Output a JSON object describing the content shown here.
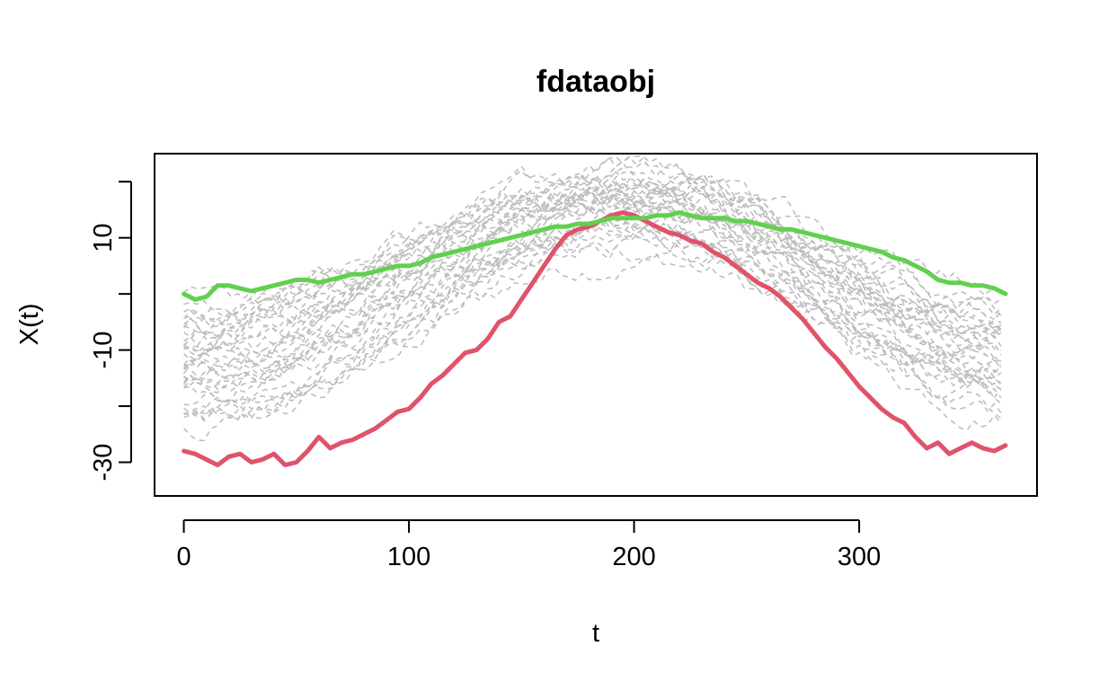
{
  "chart_data": {
    "type": "line",
    "title": "fdataobj",
    "xlabel": "t",
    "ylabel": "X(t)",
    "xlim": [
      -13,
      379
    ],
    "ylim": [
      -36,
      25
    ],
    "x_ticks": [
      0,
      100,
      200,
      300
    ],
    "y_ticks": [
      -30,
      -20,
      -10,
      0,
      10,
      20
    ],
    "y_tick_labels": [
      "-30",
      "",
      "-10",
      "",
      "10",
      ""
    ],
    "grid": false,
    "legend": "none",
    "background_style": {
      "color": "#bebebe",
      "dash": "dashed",
      "count": 35
    },
    "series": [
      {
        "color": "#DF536B",
        "values_x": [
          0,
          5,
          10,
          15,
          20,
          25,
          30,
          35,
          40,
          45,
          50,
          55,
          60,
          65,
          70,
          75,
          80,
          85,
          90,
          95,
          100,
          105,
          110,
          115,
          120,
          125,
          130,
          135,
          140,
          145,
          150,
          155,
          160,
          165,
          170,
          175,
          180,
          185,
          190,
          195,
          200,
          205,
          210,
          215,
          220,
          225,
          230,
          235,
          240,
          245,
          250,
          255,
          260,
          265,
          270,
          275,
          280,
          285,
          290,
          295,
          300,
          305,
          310,
          315,
          320,
          325,
          330,
          335,
          340,
          345,
          350,
          355,
          360,
          365
        ],
        "values_y": [
          -28,
          -28.5,
          -29.5,
          -30.5,
          -29,
          -28.5,
          -30,
          -29.5,
          -28.5,
          -30.5,
          -30,
          -28,
          -25.5,
          -27.5,
          -26.5,
          -26,
          -25,
          -24,
          -22.5,
          -21,
          -20.5,
          -18.5,
          -16,
          -14.5,
          -12.5,
          -10.5,
          -10,
          -8,
          -5,
          -4,
          -1,
          2,
          5,
          8,
          10.5,
          11.5,
          12,
          13,
          14,
          14.5,
          14,
          13,
          12,
          11,
          10.5,
          9.5,
          9,
          7.5,
          6.5,
          5,
          3.5,
          2,
          1,
          -0.5,
          -2.5,
          -4.5,
          -7,
          -9.5,
          -11.5,
          -14,
          -16.5,
          -18.5,
          -20.5,
          -22,
          -23,
          -25.5,
          -27.5,
          -26.5,
          -28.5,
          -27.5,
          -26.5,
          -27.5,
          -28,
          -27
        ]
      },
      {
        "color": "#61D04F",
        "values_x": [
          0,
          5,
          10,
          15,
          20,
          25,
          30,
          35,
          40,
          45,
          50,
          55,
          60,
          65,
          70,
          75,
          80,
          85,
          90,
          95,
          100,
          105,
          110,
          115,
          120,
          125,
          130,
          135,
          140,
          145,
          150,
          155,
          160,
          165,
          170,
          175,
          180,
          185,
          190,
          195,
          200,
          205,
          210,
          215,
          220,
          225,
          230,
          235,
          240,
          245,
          250,
          255,
          260,
          265,
          270,
          275,
          280,
          285,
          290,
          295,
          300,
          305,
          310,
          315,
          320,
          325,
          330,
          335,
          340,
          345,
          350,
          355,
          360,
          365
        ],
        "values_y": [
          0,
          -1,
          -0.5,
          1.5,
          1.5,
          1,
          0.5,
          1,
          1.5,
          2,
          2.5,
          2.5,
          2,
          2.5,
          3,
          3.5,
          3.5,
          4,
          4.5,
          5,
          5,
          5.5,
          6.5,
          7,
          7.5,
          8,
          8.5,
          9,
          9.5,
          10,
          10.5,
          11,
          11.5,
          12,
          12,
          12.5,
          12.5,
          13,
          13.5,
          13.5,
          13.5,
          13.5,
          14,
          14,
          14.5,
          14,
          13.5,
          13.5,
          13.5,
          13,
          13,
          12.5,
          12,
          11.5,
          11.5,
          11,
          10.5,
          10,
          9.5,
          9,
          8.5,
          8,
          7.5,
          6.5,
          6,
          5,
          4,
          2.5,
          2,
          2,
          1.5,
          1.5,
          1,
          0
        ]
      }
    ]
  }
}
